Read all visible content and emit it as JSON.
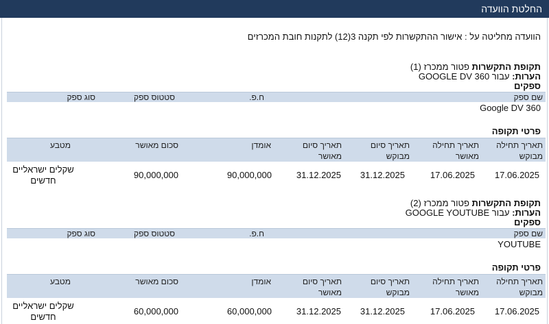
{
  "header": {
    "title": "החלטת הוועדה"
  },
  "decision": {
    "text": "הוועדה מחליטה על : אישור ההתקשרות לפי תקנה 3(12)  לתקנות חובת המכרזים"
  },
  "labels": {
    "engagement_period": "תקופת התקשרות",
    "notes": "הערות:",
    "suppliers": "ספקים",
    "period_details": "פרטי תקופה"
  },
  "supplier_columns": {
    "name": "שם ספק",
    "id": "ח.פ.",
    "status": "סטטוס ספק",
    "type": "סוג ספק"
  },
  "period_columns": {
    "start_requested": "תאריך תחילה\nמבוקש",
    "start_approved": "תאריך תחילה\nמאושר",
    "end_requested": "תאריך סיום\nמבוקש",
    "end_approved": "תאריך סיום\nמאושר",
    "estimate": "אומדן",
    "approved_amount": "סכום מאושר",
    "currency": "מטבע"
  },
  "engagements": [
    {
      "period_title": "פטור ממכרז (1)",
      "notes_text": "עבור GOOGLE DV 360",
      "supplier_name": "Google DV 360",
      "row": {
        "start_requested": "17.06.2025",
        "start_approved": "17.06.2025",
        "end_requested": "31.12.2025",
        "end_approved": "31.12.2025",
        "estimate": "90,000,000",
        "approved_amount": "90,000,000",
        "currency": "שקלים ישראליים\nחדשים"
      }
    },
    {
      "period_title": "פטור ממכרז (2)",
      "notes_text": "עבור GOOGLE YOUTUBE",
      "supplier_name": "YOUTUBE",
      "row": {
        "start_requested": "17.06.2025",
        "start_approved": "17.06.2025",
        "end_requested": "31.12.2025",
        "end_approved": "31.12.2025",
        "estimate": "60,000,000",
        "approved_amount": "60,000,000",
        "currency": "שקלים ישראליים\nחדשים"
      }
    }
  ]
}
